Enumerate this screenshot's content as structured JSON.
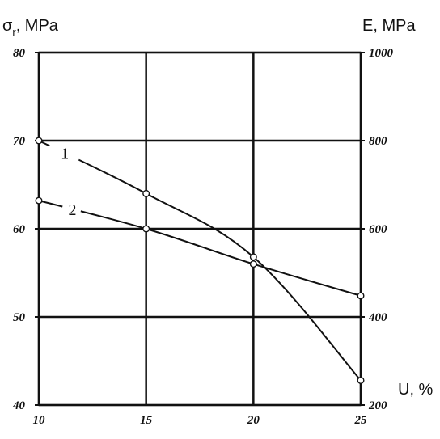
{
  "chart_data": {
    "type": "line",
    "left_axis_label": {
      "main": "σ",
      "sub": "r",
      "rest": ", MPa"
    },
    "right_axis_label": "E, MPa",
    "x_axis_label": "U, %",
    "x": [
      10,
      15,
      20,
      25
    ],
    "xlim": [
      10,
      25
    ],
    "ylim_left": [
      40,
      80
    ],
    "ylim_right": [
      200,
      1000
    ],
    "x_ticks": [
      "10",
      "15",
      "20",
      "25"
    ],
    "y_left_ticks": [
      "40",
      "50",
      "60",
      "70",
      "80"
    ],
    "y_right_ticks": [
      "200",
      "400",
      "600",
      "800",
      "1000"
    ],
    "grid": true,
    "series": [
      {
        "name": "1",
        "values": [
          70,
          64,
          56.8,
          42.8
        ]
      },
      {
        "name": "2",
        "values": [
          63.2,
          60,
          56,
          52.4
        ]
      }
    ]
  }
}
